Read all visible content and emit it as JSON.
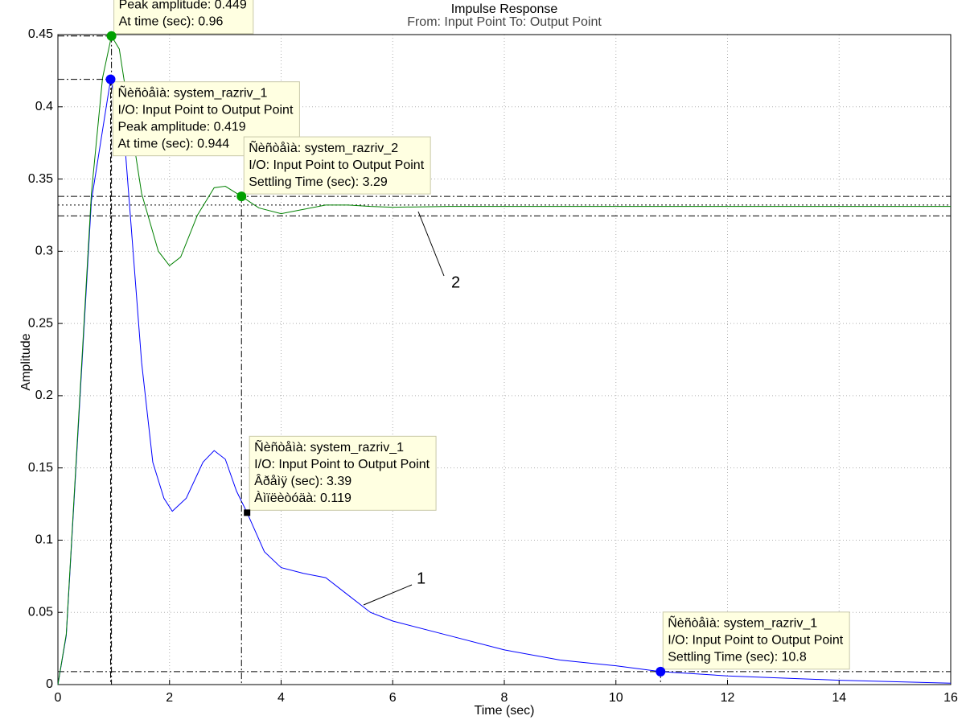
{
  "chart_data": {
    "type": "line",
    "title": "Impulse Response",
    "subtitle": "From: Input Point  To: Output Point",
    "xlabel": "Time (sec)",
    "ylabel": "Amplitude",
    "xlim": [
      0,
      16
    ],
    "ylim": [
      0,
      0.45
    ],
    "xticks": [
      0,
      2,
      4,
      6,
      8,
      10,
      12,
      14,
      16
    ],
    "yticks": [
      0,
      0.05,
      0.1,
      0.15,
      0.2,
      0.25,
      0.3,
      0.35,
      0.4,
      0.45
    ],
    "grid": true,
    "series": [
      {
        "name": "1",
        "color": "#0000ff",
        "x": [
          0,
          0.15,
          0.6,
          0.944,
          1.2,
          1.5,
          1.7,
          1.9,
          2.05,
          2.3,
          2.6,
          2.8,
          3.0,
          3.2,
          3.39,
          3.7,
          4.0,
          4.4,
          4.8,
          5.2,
          5.6,
          6,
          7,
          8,
          9,
          10,
          10.8,
          12,
          14,
          16
        ],
        "values": [
          0,
          0.034,
          0.335,
          0.419,
          0.374,
          0.223,
          0.154,
          0.129,
          0.12,
          0.129,
          0.154,
          0.162,
          0.156,
          0.134,
          0.119,
          0.092,
          0.081,
          0.077,
          0.074,
          0.062,
          0.05,
          0.044,
          0.034,
          0.024,
          0.017,
          0.013,
          0.009,
          0.006,
          0.003,
          0.001
        ]
      },
      {
        "name": "2",
        "color": "#008000",
        "x": [
          0,
          0.15,
          0.6,
          0.8,
          0.96,
          1.1,
          1.3,
          1.5,
          1.8,
          2.0,
          2.2,
          2.5,
          2.8,
          3.0,
          3.29,
          3.6,
          4.0,
          4.4,
          4.8,
          5.2,
          5.6,
          6,
          7,
          16
        ],
        "values": [
          0,
          0.035,
          0.34,
          0.42,
          0.449,
          0.44,
          0.39,
          0.34,
          0.3,
          0.29,
          0.296,
          0.325,
          0.344,
          0.345,
          0.338,
          0.33,
          0.326,
          0.329,
          0.332,
          0.332,
          0.331,
          0.3305,
          0.331,
          0.331
        ]
      }
    ],
    "hlines": [
      {
        "y": 0.338,
        "style": "dashdot"
      },
      {
        "y": 0.332,
        "style": "dotted"
      },
      {
        "y": 0.3245,
        "style": "dashdot"
      },
      {
        "y": 0.009,
        "style": "dashdot"
      }
    ],
    "annotations": [
      {
        "x": 0.96,
        "y": 0.449,
        "color": "#00a000",
        "marker": "circle",
        "guides": "peak",
        "lines": [
          "Peak amplitude: 0.449",
          "At time (sec): 0.96"
        ]
      },
      {
        "x": 0.944,
        "y": 0.419,
        "color": "#0000ff",
        "marker": "circle",
        "guides": "peak",
        "lines": [
          "Ñèñòåìà: system_razriv_1",
          "I/O: Input Point to Output Point",
          "Peak amplitude: 0.419",
          "At time (sec): 0.944"
        ]
      },
      {
        "x": 3.29,
        "y": 0.338,
        "color": "#00a000",
        "marker": "circle",
        "guides": "settling",
        "lines": [
          "Ñèñòåìà: system_razriv_2",
          "I/O: Input Point to Output Point",
          "Settling Time (sec): 3.29"
        ]
      },
      {
        "x": 3.39,
        "y": 0.119,
        "color": "#000000",
        "marker": "square",
        "guides": "none",
        "lines": [
          "Ñèñòåìà: system_razriv_1",
          "I/O: Input Point to Output Point",
          "Âðåìÿ (sec): 3.39",
          "Àìïëèòóäà: 0.119"
        ]
      },
      {
        "x": 10.8,
        "y": 0.009,
        "color": "#0000ff",
        "marker": "circle",
        "guides": "settling",
        "lines": [
          "Ñèñòåìà: system_razriv_1",
          "I/O: Input Point to Output Point",
          "Settling Time (sec): 10.8"
        ]
      }
    ]
  }
}
